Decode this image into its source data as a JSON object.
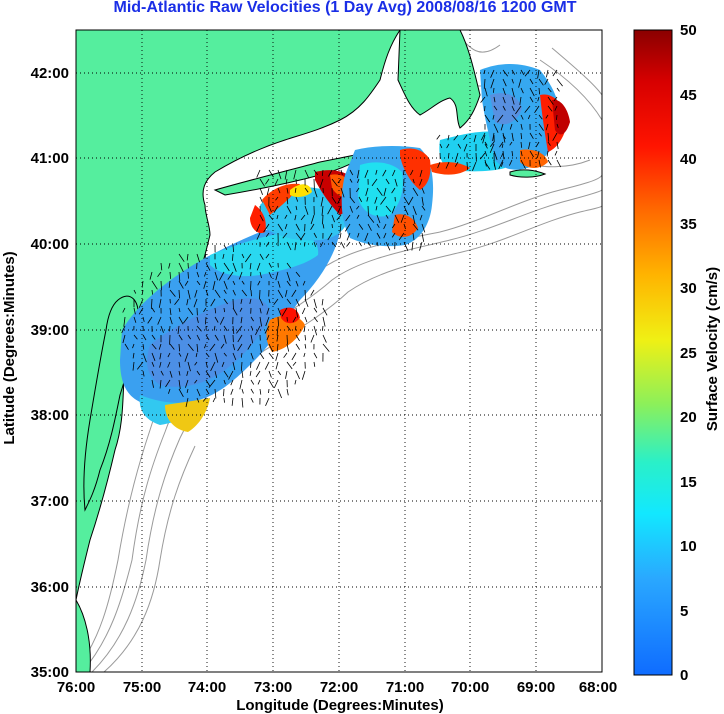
{
  "title": "Mid-Atlantic Raw Velocities (1 Day Avg) 2008/08/16 1200 GMT",
  "colors": {
    "land": "#55ee9e",
    "coast": "#000000",
    "bathymetry": "#9a9a9a",
    "title": "#1a2ee6"
  },
  "chart_data": {
    "type": "heatmap",
    "xlabel": "Longitude (Degrees:Minutes)",
    "ylabel": "Latitude (Degrees:Minutes)",
    "xlim": [
      -76,
      -68
    ],
    "ylim": [
      35,
      42.5
    ],
    "x_ticks": [
      "76:00",
      "75:00",
      "74:00",
      "73:00",
      "72:00",
      "71:00",
      "70:00",
      "69:00",
      "68:00"
    ],
    "y_ticks": [
      "35:00",
      "36:00",
      "37:00",
      "38:00",
      "39:00",
      "40:00",
      "41:00",
      "42:00"
    ],
    "grid": true,
    "colorbar": {
      "label": "Surface Velocity (cm/s)",
      "range": [
        0,
        50
      ],
      "ticks": [
        "0",
        "5",
        "10",
        "15",
        "20",
        "25",
        "30",
        "35",
        "40",
        "45",
        "50"
      ]
    }
  }
}
